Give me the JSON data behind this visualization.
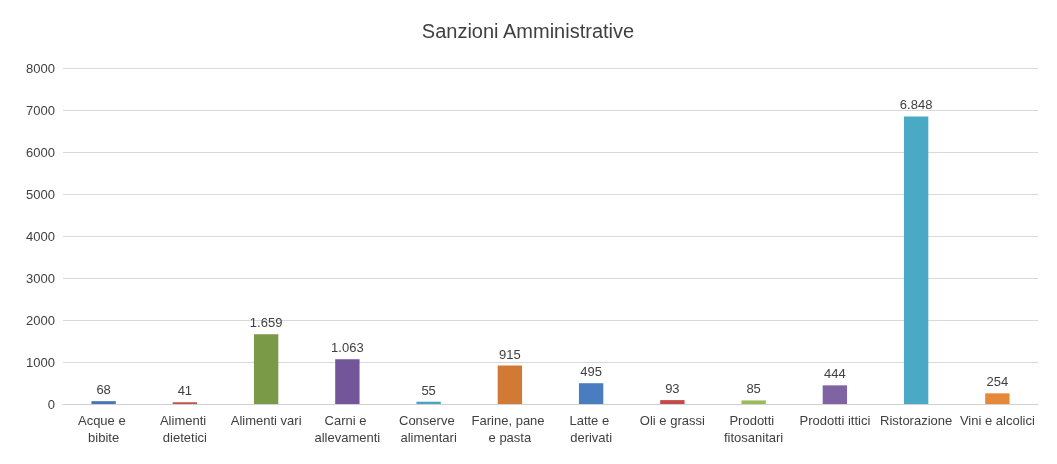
{
  "chart_data": {
    "type": "bar",
    "title": "Sanzioni Amministrative",
    "categories": [
      "Acque e bibite",
      "Alimenti dietetici",
      "Alimenti vari",
      "Carni e allevamenti",
      "Conserve alimentari",
      "Farine, pane e pasta",
      "Latte e derivati",
      "Oli e grassi",
      "Prodotti fitosanitari",
      "Prodotti ittici",
      "Ristorazione",
      "Vini e alcolici"
    ],
    "values": [
      68,
      41,
      1659,
      1063,
      55,
      915,
      495,
      93,
      85,
      444,
      6848,
      254
    ],
    "value_labels": [
      "68",
      "41",
      "1.659",
      "1.063",
      "55",
      "915",
      "495",
      "93",
      "85",
      "444",
      "6.848",
      "254"
    ],
    "colors": [
      "#4a74b5",
      "#c0504d",
      "#7a9a47",
      "#73569a",
      "#4aa5c0",
      "#d07a36",
      "#4a7dc0",
      "#c44a4a",
      "#9bbb59",
      "#7f63a3",
      "#4aaac6",
      "#e6883a"
    ],
    "ylim": [
      0,
      8000
    ],
    "yticks": [
      0,
      1000,
      2000,
      3000,
      4000,
      5000,
      6000,
      7000,
      8000
    ],
    "grid": "y"
  }
}
